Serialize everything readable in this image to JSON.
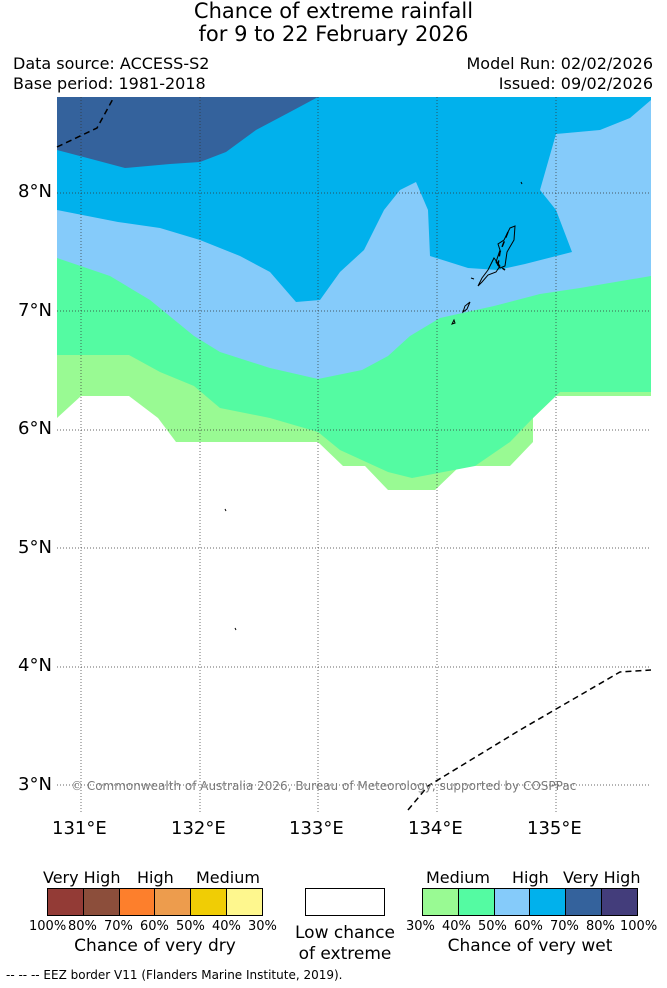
{
  "title": {
    "line1": "Chance of extreme rainfall",
    "line2": "for 9 to 22 February 2026"
  },
  "meta": {
    "data_source": "Data source: ACCESS-S2",
    "base_period": "Base period: 1981-2018",
    "model_run": "Model Run: 02/02/2026",
    "issued": "Issued: 09/02/2026"
  },
  "map": {
    "lat_ticks": [
      "8°N",
      "7°N",
      "6°N",
      "5°N",
      "4°N",
      "3°N"
    ],
    "lon_ticks": [
      "131°E",
      "132°E",
      "133°E",
      "134°E",
      "135°E"
    ],
    "copyright": "© Commonwealth of Australia 2026, Bureau of Meteorology, supported by COSPPac",
    "zones": [
      {
        "name": "30-40% wet",
        "color": "#99fa93"
      },
      {
        "name": "40-50% wet",
        "color": "#54fba2"
      },
      {
        "name": "50-60% wet",
        "color": "#85cbfa"
      },
      {
        "name": "60-70% wet",
        "color": "#01b1ec"
      },
      {
        "name": "70-80% wet",
        "color": "#34629c"
      }
    ]
  },
  "legend": {
    "dry": {
      "labels": [
        "Very High",
        "High",
        "Medium"
      ],
      "colors": [
        "#933b36",
        "#8c4e3b",
        "#fd7f2c",
        "#ed9c4d",
        "#f0cd05",
        "#fef78e"
      ],
      "percents": [
        "100%",
        "80%",
        "70%",
        "60%",
        "50%",
        "40%",
        "30%"
      ],
      "caption": "Chance of very dry"
    },
    "low": {
      "line1": "Low chance",
      "line2": "of extreme"
    },
    "wet": {
      "labels": [
        "Medium",
        "High",
        "Very High"
      ],
      "colors": [
        "#99fa93",
        "#54fba2",
        "#85cbfa",
        "#01b1ec",
        "#34629c",
        "#433d7b"
      ],
      "percents": [
        "30%",
        "40%",
        "50%",
        "60%",
        "70%",
        "80%",
        "100%"
      ],
      "caption": "Chance of very wet"
    }
  },
  "footer": "--  --  -- EEZ border V11 (Flanders Marine Institute, 2019)."
}
